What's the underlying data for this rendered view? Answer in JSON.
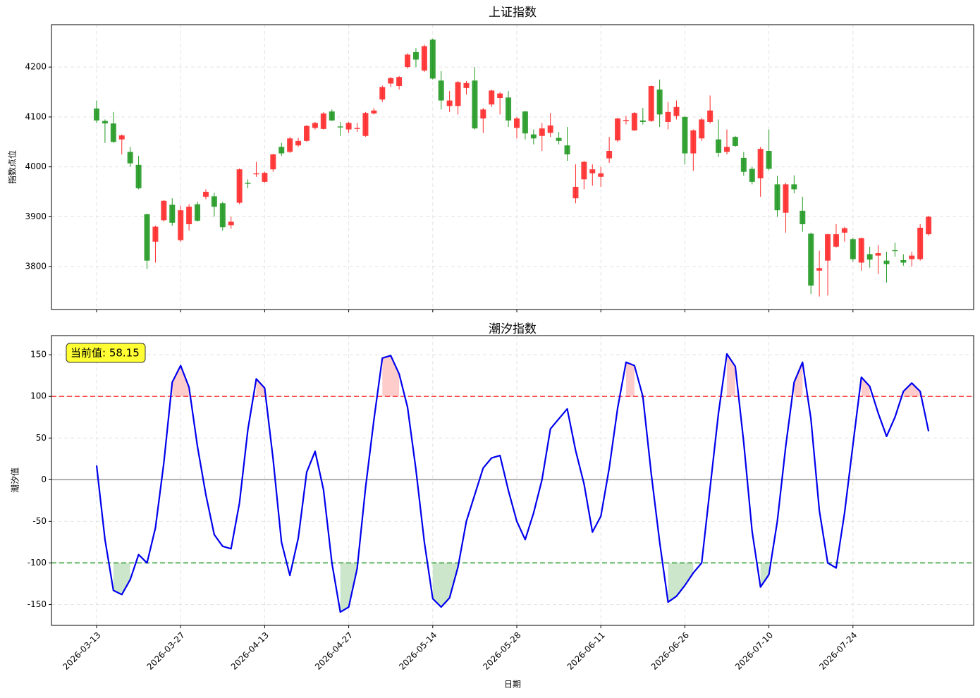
{
  "chart_data": [
    {
      "type": "candlestick",
      "title": "上证指数",
      "y_label": "指数点位",
      "up_color": "#ff2a2a",
      "down_color": "#229922",
      "ylim": [
        3714,
        4285
      ],
      "yticks": [
        3800,
        3900,
        4000,
        4100,
        4200
      ],
      "grid": true,
      "open": [
        4117,
        4092,
        4087,
        4055,
        4030,
        4004,
        3905,
        3850,
        3893,
        3924,
        3853,
        3885,
        3925,
        3940,
        3941,
        3927,
        3883,
        3928,
        3968,
        3985,
        3970,
        3995,
        4040,
        4030,
        4043,
        4052,
        4078,
        4076,
        4111,
        4081,
        4075,
        4076,
        4062,
        4107,
        4135,
        4167,
        4162,
        4200,
        4230,
        4193,
        4255,
        4173,
        4122,
        4122,
        4158,
        4173,
        4097,
        4125,
        4138,
        4139,
        4078,
        4111,
        4065,
        4062,
        4068,
        4058,
        4043,
        3937,
        3975,
        3987,
        3980,
        4017,
        4053,
        4092,
        4073,
        4093,
        4092,
        4155,
        4090,
        4102,
        4100,
        4027,
        4057,
        4090,
        4055,
        4030,
        4060,
        4018,
        3996,
        3977,
        4032,
        3965,
        3908,
        3965,
        3912,
        3866,
        3792,
        3812,
        3840,
        3868,
        3855,
        3808,
        3825,
        3822,
        3812,
        3833,
        3813,
        3815,
        3815,
        3865
      ],
      "high": [
        4133,
        4095,
        4110,
        4065,
        4040,
        4022,
        3906,
        3882,
        3933,
        3937,
        3922,
        3925,
        3930,
        3955,
        3948,
        3930,
        3900,
        3997,
        3975,
        4010,
        3990,
        4026,
        4048,
        4060,
        4058,
        4084,
        4090,
        4110,
        4115,
        4090,
        4090,
        4088,
        4110,
        4118,
        4163,
        4180,
        4182,
        4228,
        4238,
        4245,
        4257,
        4192,
        4152,
        4172,
        4172,
        4200,
        4118,
        4155,
        4150,
        4152,
        4100,
        4112,
        4075,
        4088,
        4108,
        4070,
        4080,
        4005,
        4012,
        4005,
        4000,
        4060,
        4098,
        4102,
        4110,
        4118,
        4163,
        4175,
        4130,
        4133,
        4102,
        4075,
        4098,
        4143,
        4095,
        4075,
        4062,
        4030,
        4000,
        4040,
        4075,
        3982,
        3968,
        3983,
        3940,
        3868,
        3832,
        3866,
        3885,
        3880,
        3858,
        3858,
        3840,
        3843,
        3830,
        3848,
        3825,
        3830,
        3885,
        3902
      ],
      "low": [
        4088,
        4048,
        4048,
        4025,
        4000,
        3955,
        3795,
        3808,
        3890,
        3882,
        3850,
        3872,
        3890,
        3935,
        3900,
        3872,
        3876,
        3925,
        3957,
        3980,
        3968,
        3990,
        4022,
        4028,
        4040,
        4050,
        4075,
        4075,
        4092,
        4062,
        4068,
        4070,
        4060,
        4105,
        4130,
        4160,
        4155,
        4197,
        4200,
        4190,
        4175,
        4115,
        4110,
        4105,
        4145,
        4075,
        4068,
        4120,
        4105,
        4080,
        4057,
        4055,
        4045,
        4032,
        4060,
        4045,
        4012,
        3927,
        3955,
        3962,
        3960,
        4008,
        4050,
        4085,
        4072,
        4085,
        4090,
        4080,
        4075,
        4095,
        4005,
        3992,
        4052,
        4087,
        4020,
        4025,
        4040,
        3982,
        3965,
        3940,
        3993,
        3900,
        3868,
        3947,
        3870,
        3745,
        3740,
        3742,
        3838,
        3850,
        3810,
        3792,
        3798,
        3785,
        3768,
        3820,
        3802,
        3800,
        3812,
        3862
      ],
      "close": [
        4093,
        4087,
        4050,
        4063,
        4007,
        3957,
        3812,
        3880,
        3932,
        3888,
        3913,
        3920,
        3892,
        3950,
        3920,
        3879,
        3890,
        3995,
        3966,
        3987,
        3988,
        4025,
        4027,
        4057,
        4052,
        4082,
        4088,
        4107,
        4093,
        4079,
        4088,
        4078,
        4108,
        4113,
        4160,
        4178,
        4180,
        4225,
        4215,
        4242,
        4177,
        4133,
        4133,
        4170,
        4168,
        4077,
        4115,
        4153,
        4147,
        4093,
        4097,
        4067,
        4057,
        4077,
        4083,
        4052,
        4025,
        3960,
        4010,
        3995,
        3987,
        4032,
        4097,
        4094,
        4108,
        4090,
        4162,
        4105,
        4110,
        4120,
        4027,
        4073,
        4095,
        4113,
        4028,
        4040,
        4042,
        3990,
        3970,
        4036,
        3996,
        3913,
        3965,
        3955,
        3885,
        3762,
        3797,
        3865,
        3865,
        3877,
        3815,
        3857,
        3814,
        3827,
        3805,
        3831,
        3808,
        3822,
        3878,
        3900
      ]
    },
    {
      "type": "line",
      "title": "潮汐指数",
      "x_label": "日期",
      "y_label": "潮汐值",
      "categories": [
        "2026-03-13",
        null,
        null,
        null,
        null,
        null,
        null,
        null,
        null,
        null,
        "2026-03-27",
        null,
        null,
        null,
        null,
        null,
        null,
        null,
        null,
        null,
        "2026-04-13",
        null,
        null,
        null,
        null,
        null,
        null,
        null,
        null,
        null,
        "2026-04-27",
        null,
        null,
        null,
        null,
        null,
        null,
        null,
        null,
        null,
        "2026-05-14",
        null,
        null,
        null,
        null,
        null,
        null,
        null,
        null,
        null,
        "2026-05-28",
        null,
        null,
        null,
        null,
        null,
        null,
        null,
        null,
        null,
        "2026-06-11",
        null,
        null,
        null,
        null,
        null,
        null,
        null,
        null,
        null,
        "2026-06-26",
        null,
        null,
        null,
        null,
        null,
        null,
        null,
        null,
        null,
        "2026-07-10",
        null,
        null,
        null,
        null,
        null,
        null,
        null,
        null,
        null,
        "2026-07-24",
        null,
        null,
        null,
        null,
        null,
        null,
        null,
        null,
        null
      ],
      "values": [
        17,
        -72,
        -133,
        -138,
        -120,
        -90,
        -100,
        -58,
        20,
        117,
        137,
        111,
        40,
        -18,
        -66,
        -80,
        -83,
        -28,
        60,
        121,
        110,
        25,
        -75,
        -115,
        -70,
        9,
        34,
        -12,
        -100,
        -159,
        -153,
        -107,
        -10,
        72,
        146,
        149,
        127,
        87,
        12,
        -75,
        -143,
        -153,
        -142,
        -105,
        -50,
        -18,
        14,
        26,
        29,
        -13,
        -50,
        -72,
        -40,
        0,
        61,
        73,
        85,
        35,
        -5,
        -63,
        -44,
        14,
        86,
        141,
        137,
        100,
        7,
        -75,
        -147,
        -140,
        -127,
        -112,
        -100,
        -10,
        80,
        151,
        136,
        45,
        -62,
        -129,
        -114,
        -50,
        40,
        117,
        141,
        73,
        -37,
        -100,
        -106,
        -40,
        42,
        123,
        112,
        80,
        52,
        75,
        106,
        116,
        106,
        58.15
      ],
      "color": "#0000ee",
      "ylim": [
        -175,
        173
      ],
      "yticks": [
        -150,
        -100,
        -50,
        0,
        50,
        100,
        150
      ],
      "grid": true,
      "hlines": [
        {
          "value": 100,
          "color": "#ff4444",
          "dashed": true
        },
        {
          "value": -100,
          "color": "#2a9a2a",
          "dashed": true
        },
        {
          "value": 0,
          "color": "#999999",
          "dashed": false
        }
      ],
      "fill_above": {
        "value": 100,
        "color": "#ffcccc"
      },
      "fill_below": {
        "value": -100,
        "color": "#cce6cc"
      },
      "annotation": "当前值: 58.15"
    }
  ]
}
